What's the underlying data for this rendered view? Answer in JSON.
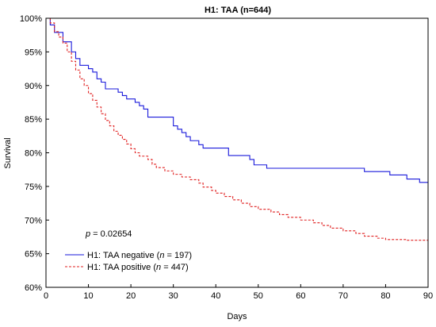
{
  "chart_data": {
    "type": "line",
    "title": "H1: TAA (n=644)",
    "xlabel": "Days",
    "ylabel": "Survival",
    "xlim": [
      0,
      90
    ],
    "ylim": [
      60,
      100
    ],
    "x_ticks": [
      0,
      10,
      20,
      30,
      40,
      50,
      60,
      70,
      80,
      90
    ],
    "y_ticks": [
      60,
      65,
      70,
      75,
      80,
      85,
      90,
      95,
      100
    ],
    "y_tick_labels": [
      "60%",
      "65%",
      "70%",
      "75%",
      "80%",
      "85%",
      "90%",
      "95%",
      "100%"
    ],
    "step": true,
    "annotation": {
      "p_label": "p",
      "p_value": " = 0.02654"
    },
    "legend_position": "lower-left",
    "series": [
      {
        "name_prefix": "H1: TAA negative (",
        "n_label": "n",
        "name_suffix": " = 197)",
        "color": "#1a1adb",
        "dash": "solid",
        "points": [
          [
            0,
            100
          ],
          [
            1,
            99.0
          ],
          [
            2,
            97.9
          ],
          [
            4,
            96.5
          ],
          [
            6,
            95.0
          ],
          [
            7,
            94.0
          ],
          [
            8,
            93.0
          ],
          [
            10,
            92.5
          ],
          [
            11,
            92.0
          ],
          [
            12,
            91.0
          ],
          [
            13,
            90.5
          ],
          [
            14,
            89.5
          ],
          [
            17,
            89.0
          ],
          [
            18,
            88.5
          ],
          [
            19,
            88.0
          ],
          [
            21,
            87.5
          ],
          [
            22,
            87.0
          ],
          [
            23,
            86.5
          ],
          [
            24,
            85.3
          ],
          [
            30,
            84.0
          ],
          [
            31,
            83.5
          ],
          [
            32,
            83.0
          ],
          [
            33,
            82.4
          ],
          [
            34,
            81.8
          ],
          [
            36,
            81.2
          ],
          [
            37,
            80.7
          ],
          [
            43,
            79.6
          ],
          [
            48,
            79.0
          ],
          [
            49,
            78.2
          ],
          [
            52,
            77.7
          ],
          [
            75,
            77.2
          ],
          [
            81,
            76.7
          ],
          [
            85,
            76.1
          ],
          [
            88,
            75.6
          ],
          [
            90,
            75.6
          ]
        ]
      },
      {
        "name_prefix": "H1: TAA positive (",
        "n_label": "n",
        "name_suffix": " = 447)",
        "color": "#e02020",
        "dash": "dashed",
        "points": [
          [
            0,
            100
          ],
          [
            1,
            99.3
          ],
          [
            2,
            98.0
          ],
          [
            3,
            97.2
          ],
          [
            4,
            96.3
          ],
          [
            5,
            95.0
          ],
          [
            6,
            93.6
          ],
          [
            7,
            92.3
          ],
          [
            8,
            91.0
          ],
          [
            9,
            90.0
          ],
          [
            10,
            88.8
          ],
          [
            11,
            87.8
          ],
          [
            12,
            86.8
          ],
          [
            13,
            85.8
          ],
          [
            14,
            84.8
          ],
          [
            15,
            84.0
          ],
          [
            16,
            83.2
          ],
          [
            17,
            82.6
          ],
          [
            18,
            82.0
          ],
          [
            19,
            81.3
          ],
          [
            20,
            80.6
          ],
          [
            21,
            80.0
          ],
          [
            22,
            79.5
          ],
          [
            24,
            79.0
          ],
          [
            25,
            78.3
          ],
          [
            26,
            77.8
          ],
          [
            28,
            77.3
          ],
          [
            30,
            76.8
          ],
          [
            32,
            76.4
          ],
          [
            34,
            76.0
          ],
          [
            36,
            75.5
          ],
          [
            37,
            74.9
          ],
          [
            39,
            74.4
          ],
          [
            40,
            74.0
          ],
          [
            42,
            73.5
          ],
          [
            44,
            73.0
          ],
          [
            46,
            72.5
          ],
          [
            48,
            72.0
          ],
          [
            50,
            71.6
          ],
          [
            53,
            71.2
          ],
          [
            55,
            70.8
          ],
          [
            57,
            70.4
          ],
          [
            60,
            70.0
          ],
          [
            63,
            69.6
          ],
          [
            65,
            69.2
          ],
          [
            67,
            68.8
          ],
          [
            70,
            68.4
          ],
          [
            73,
            68.0
          ],
          [
            75,
            67.6
          ],
          [
            78,
            67.3
          ],
          [
            80,
            67.1
          ],
          [
            85,
            67.0
          ],
          [
            90,
            67.0
          ]
        ]
      }
    ]
  }
}
